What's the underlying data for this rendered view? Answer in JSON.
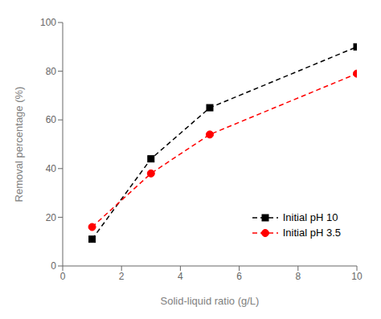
{
  "chart_data": {
    "type": "line",
    "x": [
      1,
      3,
      5,
      10
    ],
    "series": [
      {
        "name": "Initial pH 10",
        "color": "#000000",
        "values": [
          11,
          44,
          65,
          90
        ],
        "marker": "square",
        "line_style": "dashed"
      },
      {
        "name": "Initial pH 3.5",
        "color": "#ff0000",
        "values": [
          16,
          38,
          54,
          79
        ],
        "marker": "circle",
        "line_style": "dashed"
      }
    ],
    "xlabel": "Solid-liquid ratio (g/L)",
    "ylabel": "Removal percentage (%)",
    "xlim": [
      0,
      10
    ],
    "ylim": [
      0,
      100
    ],
    "xticks": [
      0,
      2,
      4,
      6,
      8,
      10
    ],
    "yticks": [
      0,
      20,
      40,
      60,
      80,
      100
    ],
    "grid": false,
    "legend": "lower right"
  }
}
